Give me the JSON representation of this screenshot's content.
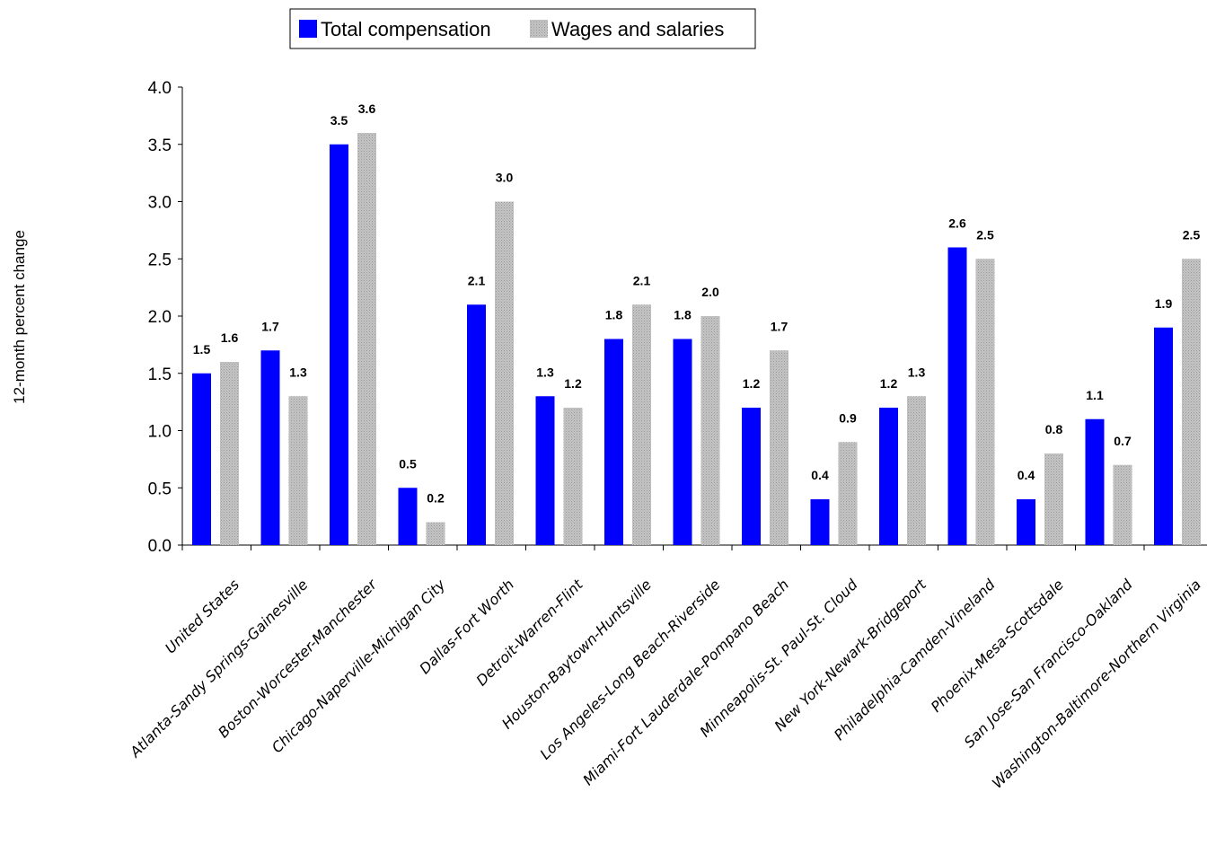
{
  "chart_data": {
    "type": "bar",
    "ylabel": "12-month percent change",
    "ylim": [
      0,
      4.0
    ],
    "yticks": [
      "0.0",
      "0.5",
      "1.0",
      "1.5",
      "2.0",
      "2.5",
      "3.0",
      "3.5",
      "4.0"
    ],
    "grid": false,
    "legend_position": "top",
    "categories": [
      "United States",
      "Atlanta-Sandy Springs-Gainesville",
      "Boston-Worcester-Manchester",
      "Chicago-Naperville-Michigan City",
      "Dallas-Fort Worth",
      "Detroit-Warren-Flint",
      "Houston-Baytown-Huntsville",
      "Los Angeles-Long Beach-Riverside",
      "Miami-Fort Lauderdale-Pompano Beach",
      "Minneapolis-St. Paul-St. Cloud",
      "New York-Newark-Bridgeport",
      "Philadelphia-Camden-Vineland",
      "Phoenix-Mesa-Scottsdale",
      "San Jose-San Francisco-Oakland",
      "Washington-Baltimore-Northern Virginia"
    ],
    "series": [
      {
        "name": "Total compensation",
        "color": "#0000ff",
        "values": [
          1.5,
          1.7,
          3.5,
          0.5,
          2.1,
          1.3,
          1.8,
          1.8,
          1.2,
          0.4,
          1.2,
          2.6,
          0.4,
          1.1,
          1.9
        ],
        "labels": [
          "1.5",
          "1.7",
          "3.5",
          "0.5",
          "2.1",
          "1.3",
          "1.8",
          "1.8",
          "1.2",
          "0.4",
          "1.2",
          "2.6",
          "0.4",
          "1.1",
          "1.9"
        ]
      },
      {
        "name": "Wages and salaries",
        "color": "#c0c0c0",
        "values": [
          1.6,
          1.3,
          3.6,
          0.2,
          3.0,
          1.2,
          2.1,
          2.0,
          1.7,
          0.9,
          1.3,
          2.5,
          0.8,
          0.7,
          2.5
        ],
        "labels": [
          "1.6",
          "1.3",
          "3.6",
          "0.2",
          "3.0",
          "1.2",
          "2.1",
          "2.0",
          "1.7",
          "0.9",
          "1.3",
          "2.5",
          "0.8",
          "0.7",
          "2.5"
        ]
      }
    ]
  }
}
